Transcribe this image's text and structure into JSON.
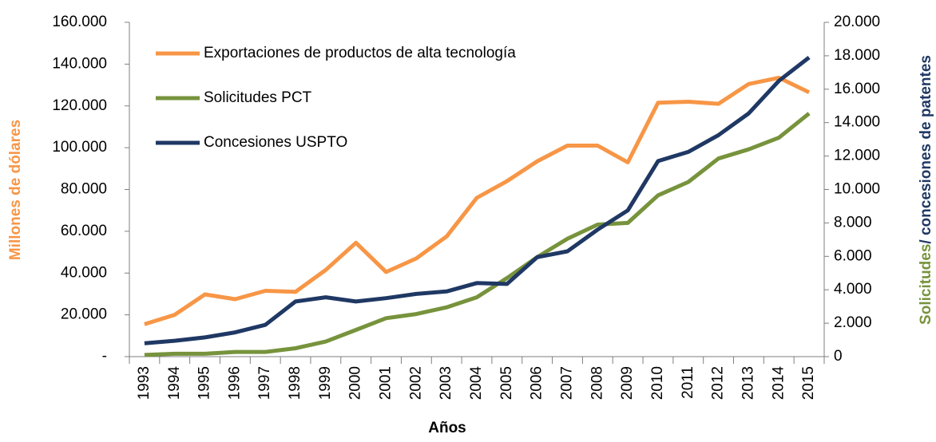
{
  "chart_data": {
    "type": "line",
    "xlabel": "Años",
    "ylabel": "Millones de dólares",
    "y2label": [
      "Solicitudes",
      "/ concesiones de patentes"
    ],
    "categories": [
      "1993",
      "1994",
      "1995",
      "1996",
      "1997",
      "1998",
      "1999",
      "2000",
      "2001",
      "2002",
      "2003",
      "2004",
      "2005",
      "2006",
      "2007",
      "2008",
      "2009",
      "2010",
      "2011",
      "2012",
      "2013",
      "2014",
      "2015"
    ],
    "series": [
      {
        "name": "Exportaciones de productos de alta tecnología",
        "color": "#f79646",
        "axis": "y",
        "values": [
          15500,
          20000,
          29800,
          27500,
          31500,
          31000,
          41500,
          54500,
          40500,
          47000,
          57500,
          76000,
          84000,
          93500,
          101000,
          101000,
          93000,
          121500,
          122000,
          121000,
          130500,
          133500,
          126500
        ]
      },
      {
        "name": "Solicitudes PCT",
        "color": "#77933c",
        "axis": "y2",
        "values": [
          100,
          170,
          170,
          280,
          280,
          500,
          900,
          1600,
          2300,
          2550,
          2950,
          3550,
          4700,
          5950,
          7050,
          7900,
          8000,
          9650,
          10450,
          11850,
          12400,
          13100,
          14550
        ]
      },
      {
        "name": "Concesiones USPTO",
        "color": "#1f3864",
        "axis": "y2",
        "values": [
          800,
          950,
          1150,
          1450,
          1900,
          3300,
          3550,
          3300,
          3500,
          3750,
          3900,
          4400,
          4350,
          5950,
          6300,
          7600,
          8750,
          11700,
          12250,
          13250,
          14550,
          16500,
          17900
        ]
      }
    ],
    "ylim": [
      0,
      160000
    ],
    "yticks": [
      {
        "value": 0,
        "label": "-"
      },
      {
        "value": 20000,
        "label": "20.000"
      },
      {
        "value": 40000,
        "label": "40.000"
      },
      {
        "value": 60000,
        "label": "60.000"
      },
      {
        "value": 80000,
        "label": "80.000"
      },
      {
        "value": 100000,
        "label": "100.000"
      },
      {
        "value": 120000,
        "label": "120.000"
      },
      {
        "value": 140000,
        "label": "140.000"
      },
      {
        "value": 160000,
        "label": "160.000"
      }
    ],
    "y2lim": [
      0,
      20000
    ],
    "y2ticks": [
      0,
      {
        "value": 2000,
        "label": "2.000"
      },
      {
        "value": 4000,
        "label": "4.000"
      },
      {
        "value": 6000,
        "label": "6.000"
      },
      {
        "value": 8000,
        "label": "8.000"
      },
      {
        "value": 10000,
        "label": "10.000"
      },
      {
        "value": 12000,
        "label": "12.000"
      },
      {
        "value": 14000,
        "label": "14.000"
      },
      {
        "value": 16000,
        "label": "16.000"
      },
      {
        "value": 18000,
        "label": "18.000"
      },
      {
        "value": 20000,
        "label": "20.000"
      }
    ],
    "legend": "upper left",
    "grid": false
  }
}
